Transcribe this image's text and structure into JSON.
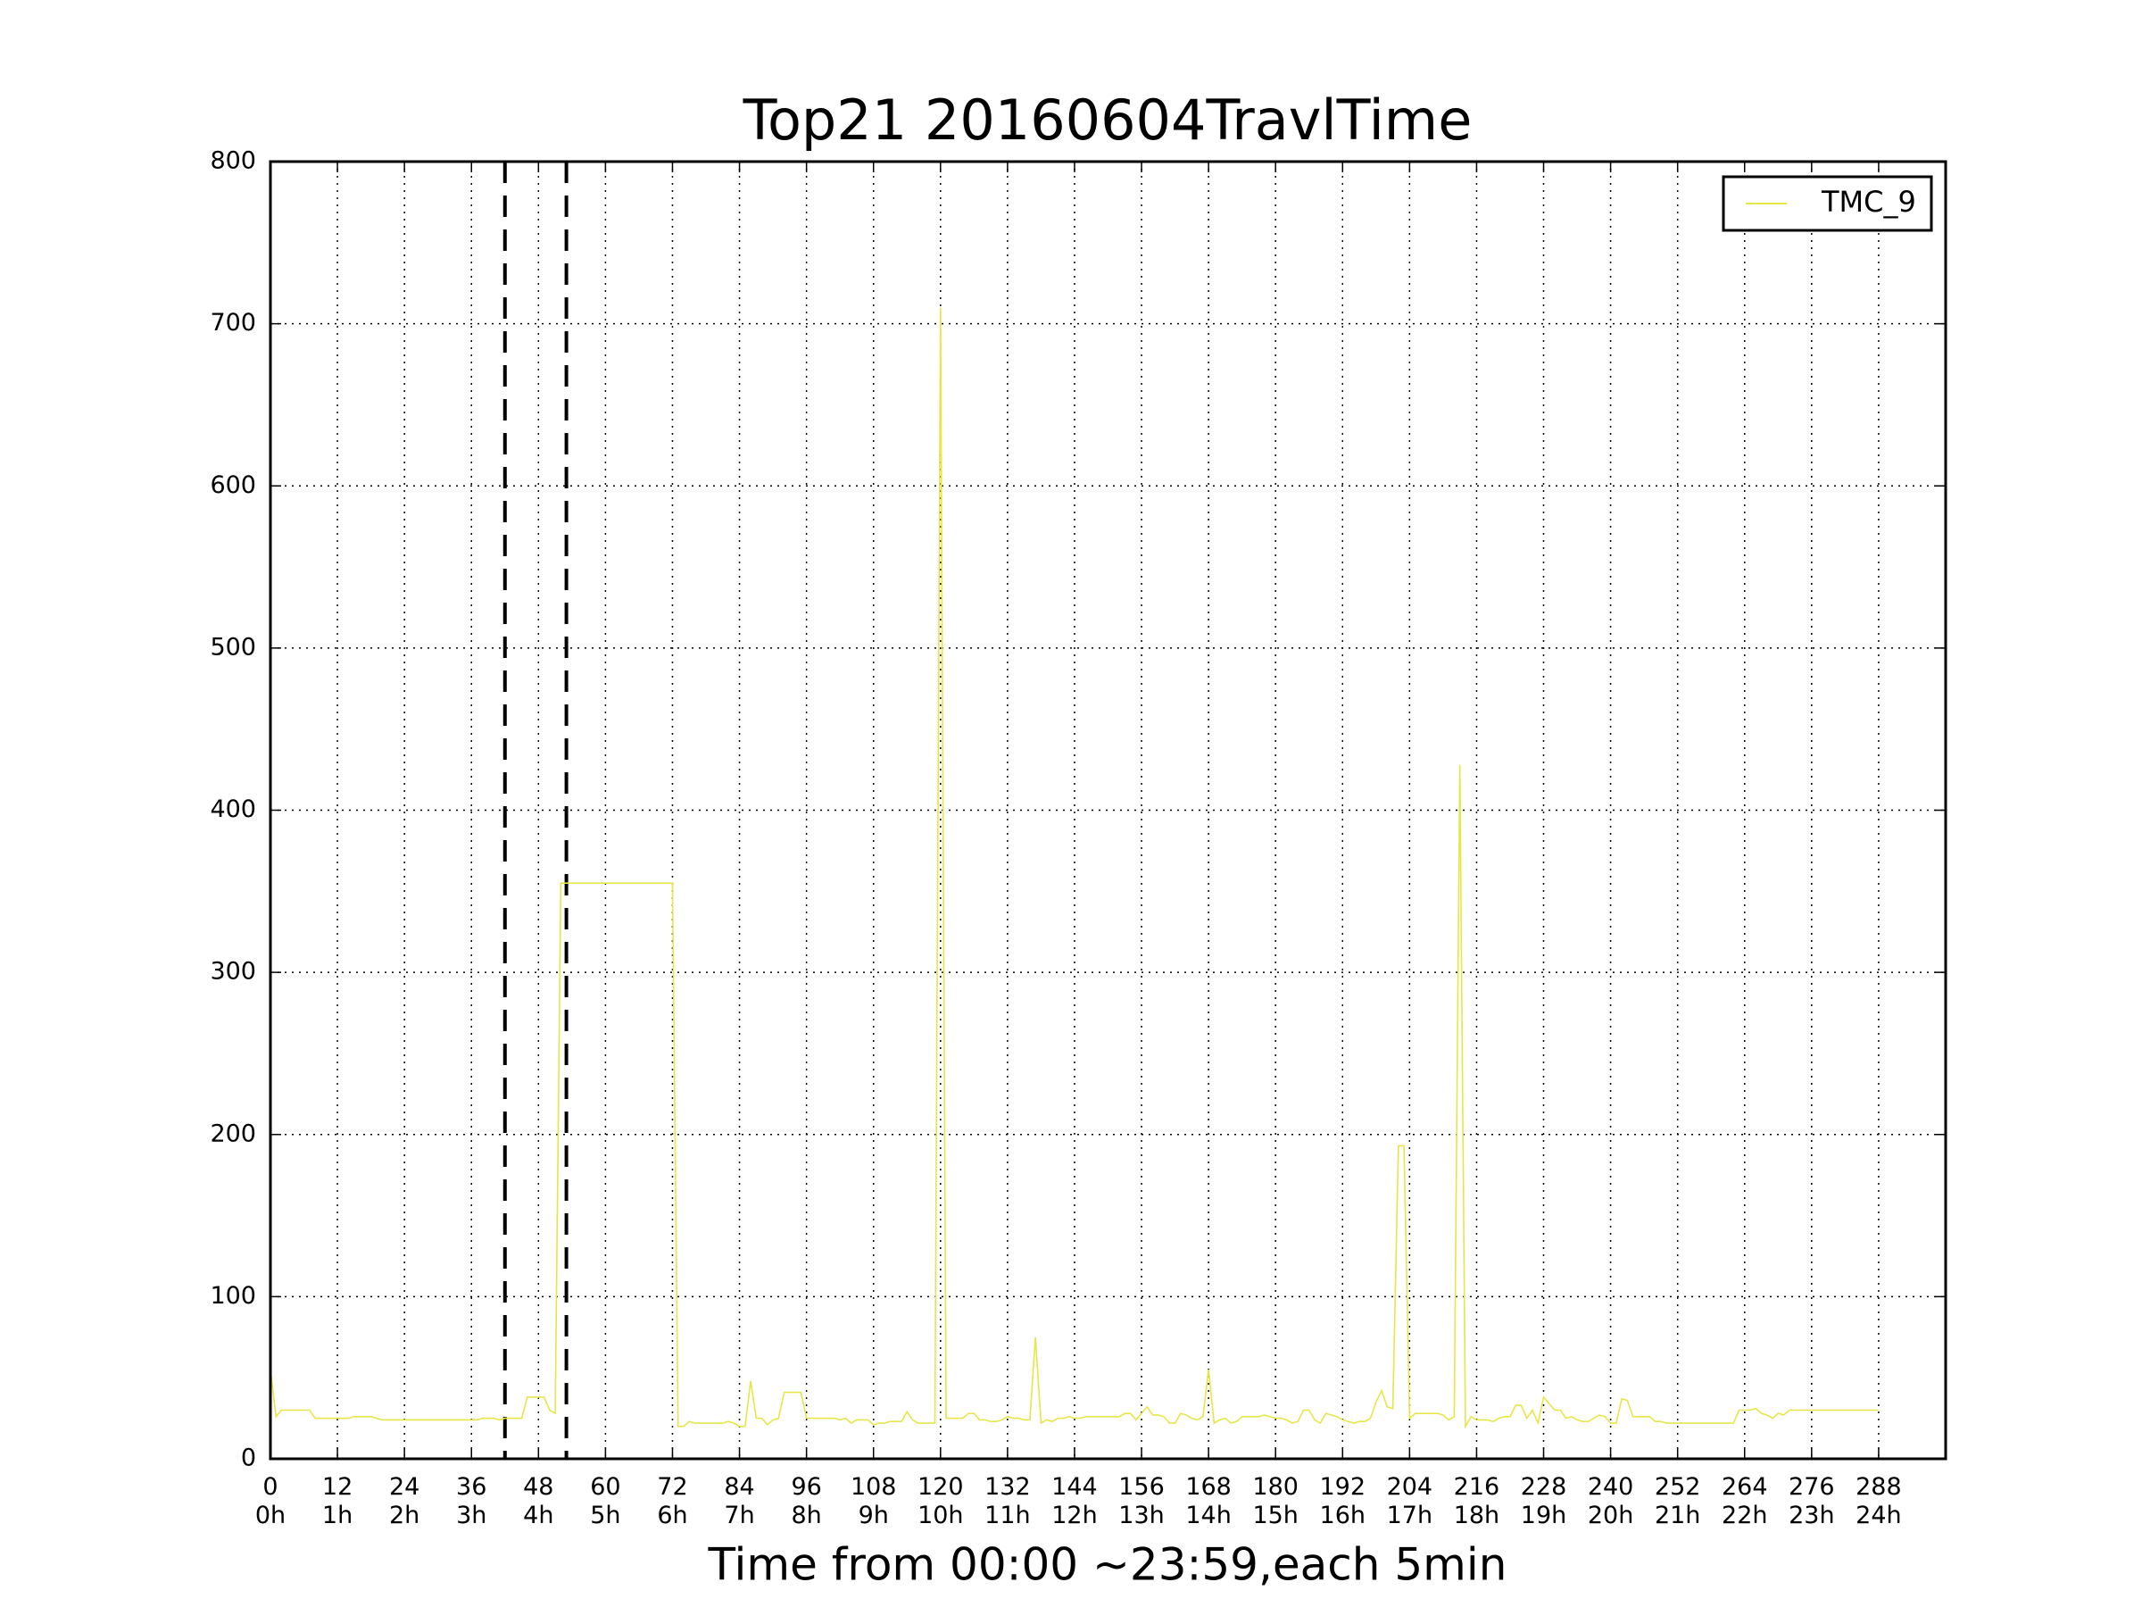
{
  "chart_data": {
    "type": "line",
    "title": "Top21 20160604TravlTime",
    "xlabel": "Time from 00:00 ~23:59,each 5min",
    "xlim": [
      0,
      300
    ],
    "ylim": [
      0,
      800
    ],
    "xticks": [
      {
        "value": 0,
        "label": "0\n0h"
      },
      {
        "value": 12,
        "label": "12\n1h"
      },
      {
        "value": 24,
        "label": "24\n2h"
      },
      {
        "value": 36,
        "label": "36\n3h"
      },
      {
        "value": 48,
        "label": "48\n4h"
      },
      {
        "value": 60,
        "label": "60\n5h"
      },
      {
        "value": 72,
        "label": "72\n6h"
      },
      {
        "value": 84,
        "label": "84\n7h"
      },
      {
        "value": 96,
        "label": "96\n8h"
      },
      {
        "value": 108,
        "label": "108\n9h"
      },
      {
        "value": 120,
        "label": "120\n10h"
      },
      {
        "value": 132,
        "label": "132\n11h"
      },
      {
        "value": 144,
        "label": "144\n12h"
      },
      {
        "value": 156,
        "label": "156\n13h"
      },
      {
        "value": 168,
        "label": "168\n14h"
      },
      {
        "value": 180,
        "label": "180\n15h"
      },
      {
        "value": 192,
        "label": "192\n16h"
      },
      {
        "value": 204,
        "label": "204\n17h"
      },
      {
        "value": 216,
        "label": "216\n18h"
      },
      {
        "value": 228,
        "label": "228\n19h"
      },
      {
        "value": 240,
        "label": "240\n20h"
      },
      {
        "value": 252,
        "label": "252\n21h"
      },
      {
        "value": 264,
        "label": "264\n22h"
      },
      {
        "value": 276,
        "label": "276\n23h"
      },
      {
        "value": 288,
        "label": "288\n24h"
      }
    ],
    "yticks": [
      0,
      100,
      200,
      300,
      400,
      500,
      600,
      700,
      800
    ],
    "grid": true,
    "legend": "upper right",
    "vlines": [
      42,
      53
    ],
    "x": [
      0,
      1,
      2,
      3,
      4,
      5,
      6,
      7,
      8,
      9,
      10,
      11,
      12,
      13,
      14,
      15,
      16,
      17,
      18,
      19,
      20,
      21,
      22,
      23,
      24,
      25,
      26,
      27,
      28,
      29,
      30,
      31,
      32,
      33,
      34,
      35,
      36,
      37,
      38,
      39,
      40,
      41,
      42,
      43,
      44,
      45,
      46,
      47,
      48,
      49,
      50,
      51,
      52,
      53,
      54,
      55,
      56,
      57,
      58,
      59,
      60,
      61,
      62,
      63,
      64,
      65,
      66,
      67,
      68,
      69,
      70,
      71,
      72,
      73,
      74,
      75,
      76,
      77,
      78,
      79,
      80,
      81,
      82,
      83,
      84,
      85,
      86,
      87,
      88,
      89,
      90,
      91,
      92,
      93,
      94,
      95,
      96,
      97,
      98,
      99,
      100,
      101,
      102,
      103,
      104,
      105,
      106,
      107,
      108,
      109,
      110,
      111,
      112,
      113,
      114,
      115,
      116,
      117,
      118,
      119,
      120,
      121,
      122,
      123,
      124,
      125,
      126,
      127,
      128,
      129,
      130,
      131,
      132,
      133,
      134,
      135,
      136,
      137,
      138,
      139,
      140,
      141,
      142,
      143,
      144,
      145,
      146,
      147,
      148,
      149,
      150,
      151,
      152,
      153,
      154,
      155,
      156,
      157,
      158,
      159,
      160,
      161,
      162,
      163,
      164,
      165,
      166,
      167,
      168,
      169,
      170,
      171,
      172,
      173,
      174,
      175,
      176,
      177,
      178,
      179,
      180,
      181,
      182,
      183,
      184,
      185,
      186,
      187,
      188,
      189,
      190,
      191,
      192,
      193,
      194,
      195,
      196,
      197,
      198,
      199,
      200,
      201,
      202,
      203,
      204,
      205,
      206,
      207,
      208,
      209,
      210,
      211,
      212,
      213,
      214,
      215,
      216,
      217,
      218,
      219,
      220,
      221,
      222,
      223,
      224,
      225,
      226,
      227,
      228,
      229,
      230,
      231,
      232,
      233,
      234,
      235,
      236,
      237,
      238,
      239,
      240,
      241,
      242,
      243,
      244,
      245,
      246,
      247,
      248,
      249,
      250,
      251,
      252,
      253,
      254,
      255,
      256,
      257,
      258,
      259,
      260,
      261,
      262,
      263,
      264,
      265,
      266,
      267,
      268,
      269,
      270,
      271,
      272,
      273,
      274,
      275,
      276,
      277,
      278,
      279,
      280,
      281,
      282,
      283,
      284,
      285,
      286,
      287,
      288
    ],
    "series": [
      {
        "name": "TMC_9",
        "color": "#e6e64a",
        "values": [
          55,
          26,
          30,
          30,
          30,
          30,
          30,
          30,
          25,
          25,
          25,
          25,
          25,
          25,
          25,
          26,
          26,
          26,
          26,
          25,
          24,
          24,
          24,
          24,
          24,
          24,
          24,
          24,
          24,
          24,
          24,
          24,
          24,
          24,
          24,
          24,
          24,
          24,
          25,
          25,
          25,
          24,
          25,
          25,
          25,
          25,
          38,
          38,
          38,
          38,
          30,
          28,
          355,
          355,
          355,
          355,
          355,
          355,
          355,
          355,
          355,
          355,
          355,
          355,
          355,
          355,
          355,
          355,
          355,
          355,
          355,
          355,
          355,
          20,
          20,
          23,
          22,
          22,
          22,
          22,
          22,
          22,
          23,
          22,
          20,
          20,
          48,
          25,
          25,
          21,
          24,
          25,
          41,
          41,
          41,
          41,
          25,
          25,
          25,
          25,
          25,
          25,
          24,
          25,
          22,
          24,
          24,
          24,
          21,
          22,
          22,
          23,
          23,
          23,
          29,
          24,
          22,
          22,
          22,
          22,
          710,
          25,
          25,
          25,
          25,
          28,
          28,
          24,
          24,
          23,
          23,
          24,
          26,
          25,
          25,
          24,
          24,
          75,
          22,
          24,
          23,
          25,
          25,
          26,
          25,
          25,
          26,
          26,
          26,
          26,
          26,
          26,
          26,
          28,
          28,
          24,
          28,
          32,
          27,
          27,
          26,
          22,
          22,
          28,
          27,
          25,
          24,
          26,
          55,
          22,
          24,
          25,
          22,
          23,
          26,
          26,
          26,
          26,
          27,
          26,
          25,
          25,
          24,
          22,
          23,
          30,
          30,
          24,
          22,
          28,
          27,
          26,
          24,
          23,
          22,
          23,
          23,
          25,
          35,
          42,
          32,
          31,
          193,
          193,
          25,
          28,
          28,
          28,
          28,
          28,
          27,
          24,
          26,
          428,
          20,
          26,
          24,
          24,
          24,
          23,
          25,
          26,
          26,
          33,
          33,
          25,
          30,
          22,
          38,
          34,
          30,
          30,
          25,
          26,
          24,
          23,
          23,
          25,
          27,
          26,
          22,
          22,
          37,
          36,
          26,
          26,
          26,
          26,
          23,
          23,
          22,
          22,
          22,
          22,
          22,
          22,
          22,
          22,
          22,
          22,
          22,
          22,
          22,
          30,
          30,
          30,
          31,
          28,
          27,
          25,
          28,
          27,
          30,
          30,
          30,
          30,
          30,
          30,
          30,
          30,
          30,
          30,
          30,
          30,
          30,
          30,
          30,
          30,
          30
        ]
      }
    ]
  }
}
